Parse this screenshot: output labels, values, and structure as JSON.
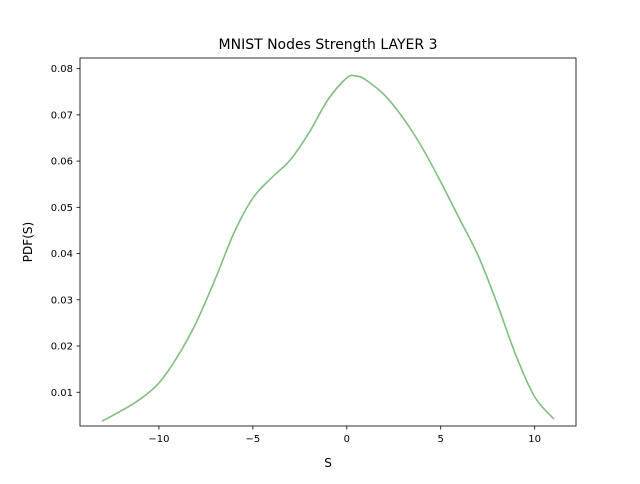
{
  "chart_data": {
    "type": "line",
    "title": "MNIST Nodes Strength LAYER 3",
    "xlabel": "S",
    "ylabel": "PDF(S)",
    "xlim": [
      -14.2,
      12.2
    ],
    "ylim": [
      0.0027,
      0.0823
    ],
    "xticks": [
      -10,
      -5,
      0,
      5,
      10
    ],
    "xtick_labels": [
      "−10",
      "−5",
      "0",
      "5",
      "10"
    ],
    "yticks": [
      0.01,
      0.02,
      0.03,
      0.04,
      0.05,
      0.06,
      0.07,
      0.08
    ],
    "ytick_labels": [
      "0.01",
      "0.02",
      "0.03",
      "0.04",
      "0.05",
      "0.06",
      "0.07",
      "0.08"
    ],
    "grid": false,
    "series": [
      {
        "color": "#7fbf7f",
        "x": [
          -13.0,
          -12.0,
          -11.0,
          -10.0,
          -9.0,
          -8.0,
          -7.0,
          -6.0,
          -5.0,
          -4.0,
          -3.0,
          -2.0,
          -1.0,
          0.0,
          0.5,
          1.0,
          2.0,
          3.0,
          4.0,
          5.0,
          6.0,
          7.0,
          8.0,
          9.0,
          10.0,
          11.0
        ],
        "y": [
          0.0038,
          0.006,
          0.0085,
          0.012,
          0.0178,
          0.0252,
          0.0345,
          0.0445,
          0.052,
          0.0564,
          0.0603,
          0.0662,
          0.0733,
          0.078,
          0.0784,
          0.0776,
          0.0743,
          0.0693,
          0.063,
          0.0555,
          0.0475,
          0.0395,
          0.0292,
          0.018,
          0.009,
          0.0043
        ]
      }
    ]
  }
}
